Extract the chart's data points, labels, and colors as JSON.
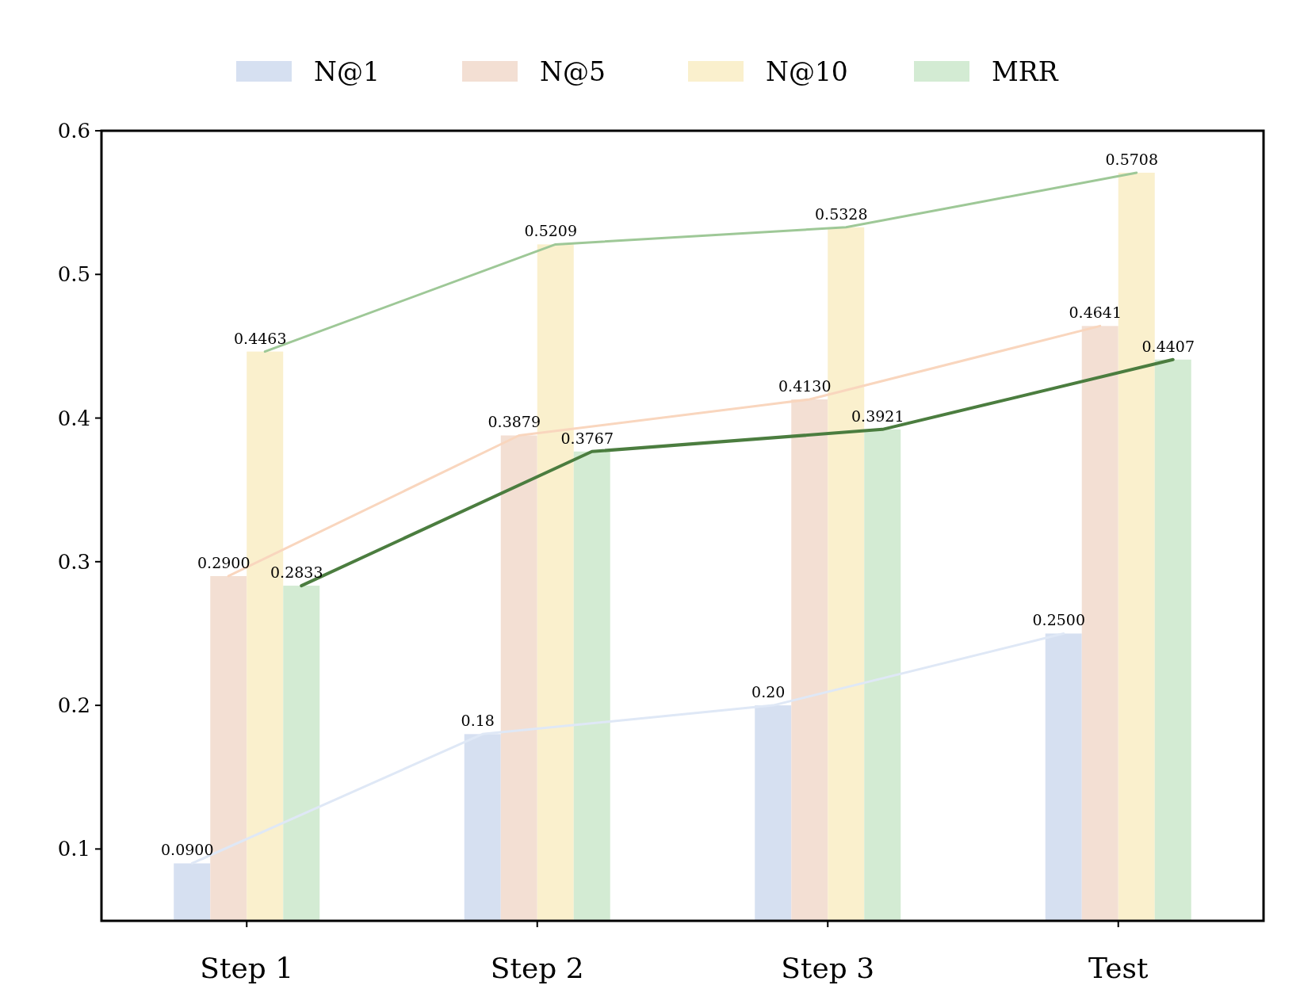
{
  "chart_data": {
    "type": "bar",
    "categories": [
      "Step 1",
      "Step 2",
      "Step 3",
      "Test"
    ],
    "ylim": [
      0.05,
      0.6
    ],
    "yticks": [
      0.1,
      0.2,
      0.3,
      0.4,
      0.5,
      0.6
    ],
    "grid": false,
    "legend": "top",
    "series": [
      {
        "name": "N@1",
        "color": "#d6e0f1",
        "values": [
          0.09,
          0.18,
          0.2,
          0.25
        ],
        "value_labels": [
          "0.0900",
          "0.18",
          "0.20",
          "0.2500"
        ]
      },
      {
        "name": "N@5",
        "color": "#f3dfd3",
        "values": [
          0.29,
          0.3879,
          0.413,
          0.4641
        ],
        "value_labels": [
          "0.2900",
          "0.3879",
          "0.4130",
          "0.4641"
        ]
      },
      {
        "name": "N@10",
        "color": "#faf0cd",
        "values": [
          0.4463,
          0.5209,
          0.5328,
          0.5708
        ],
        "value_labels": [
          "0.4463",
          "0.5209",
          "0.5328",
          "0.5708"
        ]
      },
      {
        "name": "MRR",
        "color": "#d3ebd3",
        "values": [
          0.2833,
          0.3767,
          0.3921,
          0.4407
        ],
        "value_labels": [
          "0.2833",
          "0.3767",
          "0.3921",
          "0.4407"
        ]
      },
      {
        "type": "line",
        "color": "#dfe8f6",
        "values": [
          0.09,
          0.18,
          0.2,
          0.25
        ]
      },
      {
        "type": "line",
        "color": "#f9d6be",
        "values": [
          0.29,
          0.3879,
          0.413,
          0.4641
        ]
      },
      {
        "type": "line",
        "color": "#9ec897",
        "values": [
          0.4463,
          0.5209,
          0.5328,
          0.5708
        ]
      },
      {
        "type": "line",
        "color": "#4b7d3f",
        "values": [
          0.2833,
          0.3767,
          0.3921,
          0.4407
        ]
      }
    ]
  }
}
